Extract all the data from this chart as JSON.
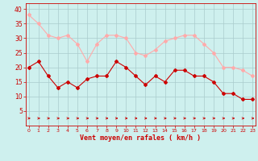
{
  "x": [
    0,
    1,
    2,
    3,
    4,
    5,
    6,
    7,
    8,
    9,
    10,
    11,
    12,
    13,
    14,
    15,
    16,
    17,
    18,
    19,
    20,
    21,
    22,
    23
  ],
  "wind_avg": [
    20,
    22,
    17,
    13,
    15,
    13,
    16,
    17,
    17,
    22,
    20,
    17,
    14,
    17,
    15,
    19,
    19,
    17,
    17,
    15,
    11,
    11,
    9,
    9
  ],
  "wind_gust": [
    38,
    35,
    31,
    30,
    31,
    28,
    22,
    28,
    31,
    31,
    30,
    25,
    24,
    26,
    29,
    30,
    31,
    31,
    28,
    25,
    20,
    20,
    19,
    17
  ],
  "avg_color": "#cc0000",
  "gust_color": "#ffaaaa",
  "bg_color": "#cef0ee",
  "grid_color": "#aacccc",
  "xlabel": "Vent moyen/en rafales ( km/h )",
  "xlabel_color": "#cc0000",
  "tick_color": "#cc0000",
  "ylim": [
    0,
    42
  ],
  "yticks": [
    5,
    10,
    15,
    20,
    25,
    30,
    35,
    40
  ],
  "xlim": [
    -0.3,
    23.3
  ]
}
